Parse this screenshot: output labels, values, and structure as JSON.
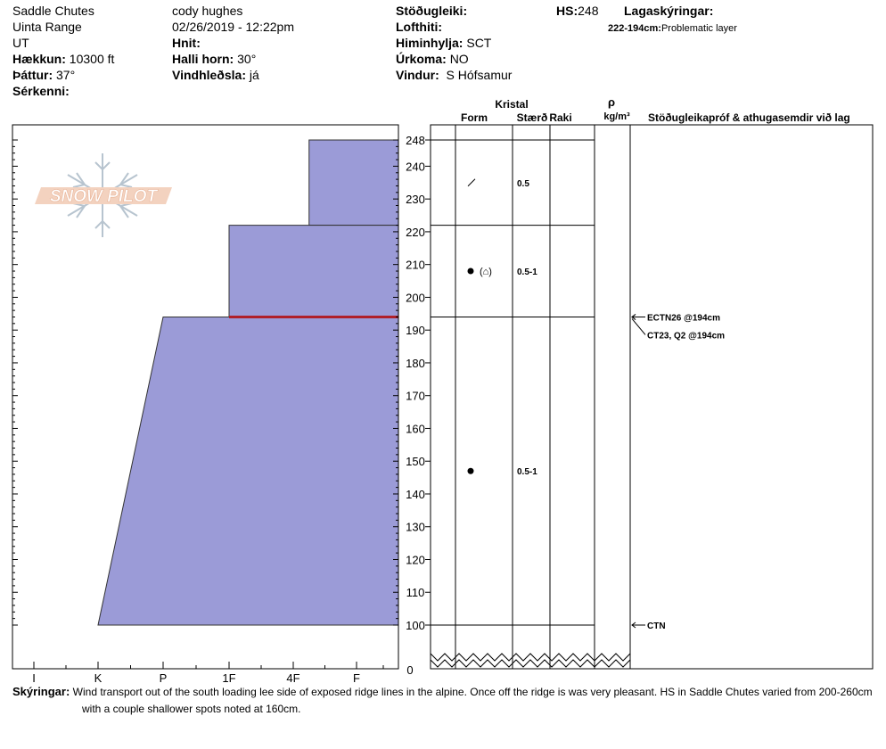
{
  "header": {
    "location": "Saddle Chutes",
    "range": "Uinta Range",
    "state": "UT",
    "elevation_label": "Hækkun:",
    "elevation_value": "10300 ft",
    "aspect_label": "Þáttur:",
    "aspect_value": "37°",
    "features_label": "Sérkenni:",
    "observer": "cody hughes",
    "datetime": "02/26/2019 - 12:22pm",
    "coords_label": "Hnit:",
    "slope_label": "Halli horn:",
    "slope_value": "30°",
    "wind_loading_label": "Vindhleðsla:",
    "wind_loading_value": "já",
    "stability_label": "Stöðugleiki:",
    "air_temp_label": "Lofthiti:",
    "sky_label": "Himinhylja:",
    "sky_value": "SCT",
    "precip_label": "Úrkoma:",
    "precip_value": "NO",
    "wind_label": "Vindur:",
    "wind_value": "S Hófsamur",
    "hs_label": "HS:",
    "hs_value": "248",
    "layers_label": "Lagaskýringar:",
    "problem_range": "222-194cm:",
    "problem_text": "Problematic layer"
  },
  "columns": {
    "crystal": "Kristal",
    "form": "Form",
    "size": "Stærð",
    "moisture": "Raki",
    "rho": "ρ",
    "density_unit": "kg/m³",
    "tests": "Stöðugleikapróf & athugasemdir við lag"
  },
  "logo_text": "SNOW PILOT",
  "chart_data": {
    "type": "area",
    "hardness_ticks": [
      "I",
      "K",
      "P",
      "1F",
      "4F",
      "F"
    ],
    "y_ticks": [
      248,
      240,
      230,
      220,
      210,
      200,
      190,
      180,
      170,
      160,
      150,
      140,
      130,
      120,
      110,
      100
    ],
    "y_zero": "0",
    "ylim": [
      100,
      248
    ],
    "layers": [
      {
        "top": 248,
        "bottom": 222,
        "hardness_top": 4.25,
        "hardness_bottom": 4.25,
        "grain_size": "0.5",
        "form": "/",
        "form_symbol": "decomposing"
      },
      {
        "top": 222,
        "bottom": 194,
        "hardness_top": 3.0,
        "hardness_bottom": 3.0,
        "grain_size": "0.5-1",
        "form": "●(⌂)",
        "form_symbol": "rounded-faceted"
      },
      {
        "top": 194,
        "bottom": 100,
        "hardness_top": 2.0,
        "hardness_bottom": 1.0,
        "grain_size": "0.5-1",
        "form": "●",
        "form_symbol": "rounded"
      }
    ],
    "layer_boundaries": [
      248,
      222,
      194,
      100
    ],
    "problematic_layer": {
      "top": 222,
      "bottom": 194,
      "color": "#b0202a"
    },
    "fill_color": "#9b9bd7",
    "tests": [
      {
        "depth": 194,
        "label": "ECTN26 @194cm"
      },
      {
        "depth": 194,
        "label": "CT23, Q2 @194cm"
      },
      {
        "depth": 100,
        "label": "CTN"
      }
    ]
  },
  "comments_label": "Skýringar:",
  "comments_line1": "Wind transport out of the south loading lee side of exposed ridge lines in the alpine. Once off the ridge is was very pleasant. HS in Saddle Chutes varied from 200-260cm",
  "comments_line2": "with a couple shallower spots noted at 160cm."
}
